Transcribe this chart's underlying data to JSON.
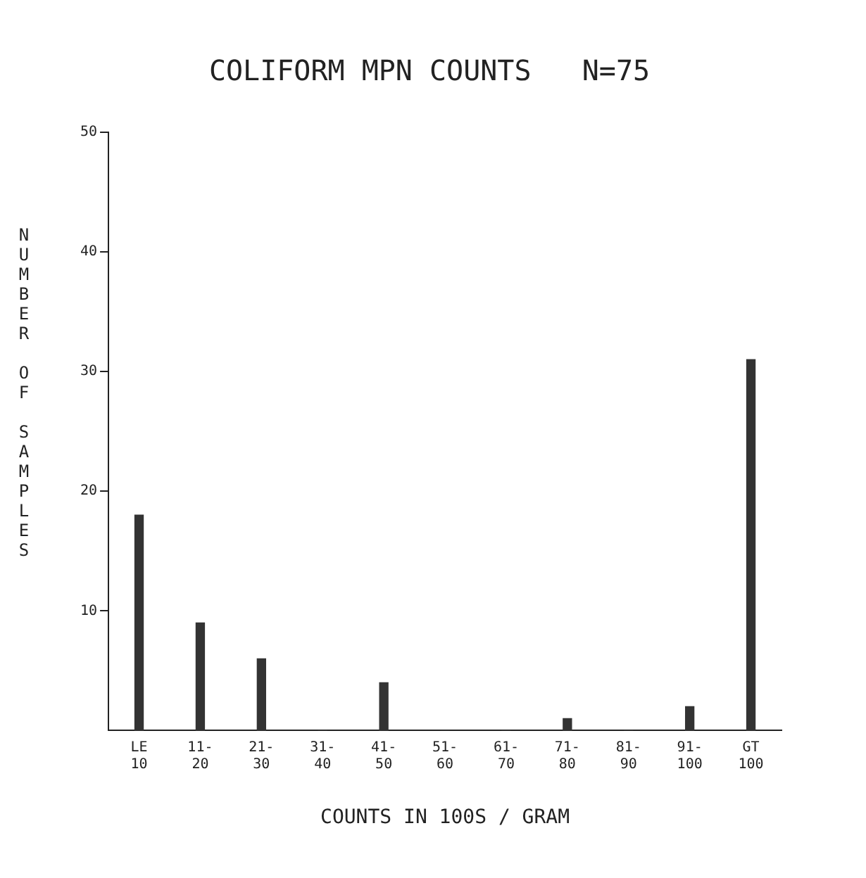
{
  "chart_data": {
    "type": "bar",
    "title": "COLIFORM MPN COUNTS   N=75",
    "xlabel": "COUNTS IN 100S / GRAM",
    "ylabel": "NUMBER OF SAMPLES",
    "categories": [
      "LE 10",
      "11- 20",
      "21- 30",
      "31- 40",
      "41- 50",
      "51- 60",
      "61- 70",
      "71- 80",
      "81- 90",
      "91- 100",
      "GT 100"
    ],
    "values": [
      18,
      9,
      6,
      0,
      4,
      0,
      0,
      1,
      0,
      2,
      31
    ],
    "color": "#333333",
    "ylim": [
      0,
      50
    ],
    "yticks": [
      10,
      20,
      30,
      40,
      50
    ],
    "grid": false,
    "legend": false
  }
}
